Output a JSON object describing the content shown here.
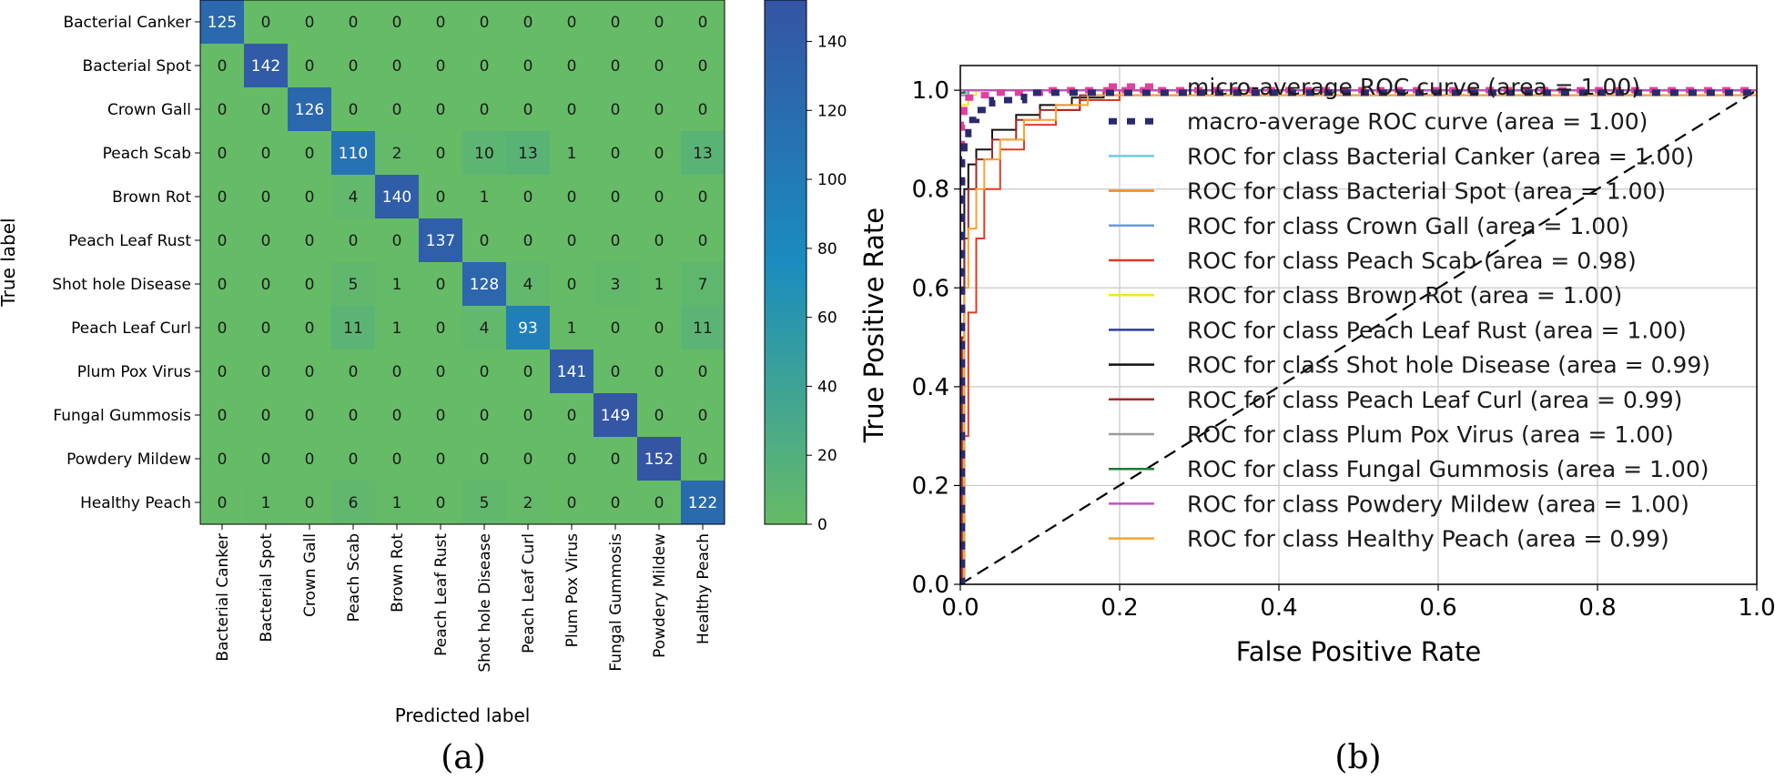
{
  "figure": {
    "panel_a_caption": "(a)",
    "panel_b_caption": "(b)"
  },
  "chart_data": [
    {
      "type": "heatmap",
      "title": "",
      "xlabel": "Predicted label",
      "ylabel": "True label",
      "classes": [
        "Bacterial Canker",
        "Bacterial Spot",
        "Crown Gall",
        "Peach Scab",
        "Brown Rot",
        "Peach Leaf Rust",
        "Shot hole Disease",
        "Peach Leaf Curl",
        "Plum Pox Virus",
        "Fungal Gummosis",
        "Powdery Mildew",
        "Healthy Peach"
      ],
      "matrix": [
        [
          125,
          0,
          0,
          0,
          0,
          0,
          0,
          0,
          0,
          0,
          0,
          0
        ],
        [
          0,
          142,
          0,
          0,
          0,
          0,
          0,
          0,
          0,
          0,
          0,
          0
        ],
        [
          0,
          0,
          126,
          0,
          0,
          0,
          0,
          0,
          0,
          0,
          0,
          0
        ],
        [
          0,
          0,
          0,
          110,
          2,
          0,
          10,
          13,
          1,
          0,
          0,
          13
        ],
        [
          0,
          0,
          0,
          4,
          140,
          0,
          1,
          0,
          0,
          0,
          0,
          0
        ],
        [
          0,
          0,
          0,
          0,
          0,
          137,
          0,
          0,
          0,
          0,
          0,
          0
        ],
        [
          0,
          0,
          0,
          5,
          1,
          0,
          128,
          4,
          0,
          3,
          1,
          7
        ],
        [
          0,
          0,
          0,
          11,
          1,
          0,
          4,
          93,
          1,
          0,
          0,
          11
        ],
        [
          0,
          0,
          0,
          0,
          0,
          0,
          0,
          0,
          141,
          0,
          0,
          0
        ],
        [
          0,
          0,
          0,
          0,
          0,
          0,
          0,
          0,
          0,
          149,
          0,
          0
        ],
        [
          0,
          0,
          0,
          0,
          0,
          0,
          0,
          0,
          0,
          0,
          152,
          0
        ],
        [
          0,
          1,
          0,
          6,
          1,
          0,
          5,
          2,
          0,
          0,
          0,
          122
        ]
      ],
      "colorbar": {
        "range": [
          0,
          152
        ],
        "ticks": [
          0,
          20,
          40,
          60,
          80,
          100,
          120,
          140
        ],
        "colors": {
          "low": "#66bb66",
          "mid": "#1a8cbf",
          "high": "#3454a4"
        }
      }
    },
    {
      "type": "line",
      "title": "",
      "xlabel": "False Positive Rate",
      "ylabel": "True Positive Rate",
      "xlim": [
        0.0,
        1.0
      ],
      "ylim": [
        0.0,
        1.05
      ],
      "xticks": [
        "0.0",
        "0.2",
        "0.4",
        "0.6",
        "0.8",
        "1.0"
      ],
      "yticks": [
        "0.0",
        "0.2",
        "0.4",
        "0.6",
        "0.8",
        "1.0"
      ],
      "grid": true,
      "legend_location": "lower-right",
      "diagonal": {
        "x": [
          0,
          1
        ],
        "y": [
          0,
          1
        ],
        "style": "dashed",
        "color": "#000000"
      },
      "series": [
        {
          "name": "micro-average ROC curve (area = 1.00)",
          "color": "#e0409f",
          "style": "dotted-thick",
          "x": [
            0,
            0.002,
            0.005,
            0.01,
            0.02,
            0.04,
            0.1,
            1
          ],
          "y": [
            0,
            0.93,
            0.975,
            0.985,
            0.99,
            0.995,
            1,
            1
          ]
        },
        {
          "name": "macro-average ROC curve (area = 1.00)",
          "color": "#2a2a6e",
          "style": "dotted-thick",
          "x": [
            0,
            0.002,
            0.005,
            0.01,
            0.02,
            0.04,
            0.08,
            1
          ],
          "y": [
            0,
            0.86,
            0.9,
            0.94,
            0.96,
            0.98,
            0.995,
            1
          ]
        },
        {
          "name": "ROC for class Bacterial Canker (area = 1.00)",
          "color": "#6ecbe6",
          "style": "solid",
          "x": [
            0,
            0,
            0.01,
            1
          ],
          "y": [
            0,
            0.995,
            1,
            1
          ]
        },
        {
          "name": "ROC for class Bacterial Spot (area = 1.00)",
          "color": "#f28b2a",
          "style": "solid",
          "x": [
            0,
            0,
            0.01,
            1
          ],
          "y": [
            0,
            0.99,
            1,
            1
          ]
        },
        {
          "name": "ROC for class Crown Gall (area = 1.00)",
          "color": "#6f98d8",
          "style": "solid",
          "x": [
            0,
            0,
            0.01,
            1
          ],
          "y": [
            0,
            0.99,
            1,
            1
          ]
        },
        {
          "name": "ROC for class Peach Scab (area = 0.98)",
          "color": "#e03b24",
          "style": "solid",
          "x": [
            0,
            0.005,
            0.01,
            0.02,
            0.03,
            0.05,
            0.08,
            0.12,
            0.15,
            0.2,
            1
          ],
          "y": [
            0,
            0.3,
            0.55,
            0.7,
            0.8,
            0.88,
            0.93,
            0.96,
            0.98,
            1,
            1
          ]
        },
        {
          "name": "ROC for class Brown Rot (area = 1.00)",
          "color": "#f2e822",
          "style": "solid",
          "x": [
            0,
            0,
            0.01,
            0.02,
            1
          ],
          "y": [
            0,
            0.97,
            0.99,
            1,
            1
          ]
        },
        {
          "name": "ROC for class Peach Leaf Rust (area = 1.00)",
          "color": "#2c3e9c",
          "style": "solid",
          "x": [
            0,
            0,
            0.005,
            1
          ],
          "y": [
            0,
            0.995,
            1,
            1
          ]
        },
        {
          "name": "ROC for class Shot hole Disease (area = 0.99)",
          "color": "#111111",
          "style": "solid",
          "x": [
            0,
            0.005,
            0.01,
            0.02,
            0.04,
            0.07,
            0.1,
            0.14,
            0.18,
            1
          ],
          "y": [
            0,
            0.8,
            0.85,
            0.88,
            0.92,
            0.95,
            0.97,
            0.985,
            1,
            1
          ]
        },
        {
          "name": "ROC for class Peach Leaf Curl (area = 0.99)",
          "color": "#a32a2a",
          "style": "solid",
          "x": [
            0,
            0.002,
            0.005,
            0.01,
            0.02,
            0.04,
            0.07,
            0.1,
            0.15,
            1
          ],
          "y": [
            0,
            0.5,
            0.7,
            0.8,
            0.86,
            0.9,
            0.94,
            0.96,
            0.99,
            1
          ]
        },
        {
          "name": "ROC for class Plum Pox Virus (area = 1.00)",
          "color": "#9a9a9a",
          "style": "solid",
          "x": [
            0,
            0,
            0.01,
            1
          ],
          "y": [
            0,
            0.99,
            1,
            1
          ]
        },
        {
          "name": "ROC for class Fungal Gummosis (area = 1.00)",
          "color": "#1e7a3a",
          "style": "solid",
          "x": [
            0,
            0,
            0.005,
            1
          ],
          "y": [
            0,
            0.995,
            1,
            1
          ]
        },
        {
          "name": "ROC for class Powdery Mildew (area = 1.00)",
          "color": "#c353c3",
          "style": "solid",
          "x": [
            0,
            0,
            1
          ],
          "y": [
            0,
            1,
            1
          ]
        },
        {
          "name": "ROC for class Healthy Peach (area = 0.99)",
          "color": "#f4a530",
          "style": "solid",
          "x": [
            0,
            0.005,
            0.01,
            0.02,
            0.03,
            0.05,
            0.08,
            0.12,
            0.16,
            1
          ],
          "y": [
            0,
            0.6,
            0.72,
            0.8,
            0.86,
            0.9,
            0.94,
            0.97,
            0.99,
            1
          ]
        }
      ]
    }
  ]
}
